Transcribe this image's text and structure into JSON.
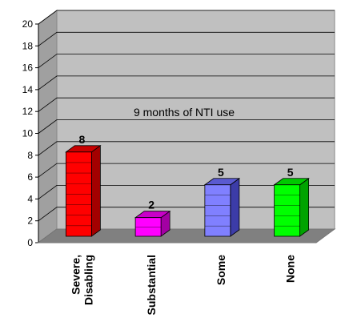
{
  "chart_data": {
    "type": "bar",
    "title": "",
    "annotation": "9 months of NTI use",
    "categories": [
      [
        "Severe,",
        "Disabling"
      ],
      [
        "Substantial"
      ],
      [
        "Some"
      ],
      [
        "None"
      ]
    ],
    "values": [
      8,
      2,
      5,
      5
    ],
    "value_labels": [
      "8",
      "2",
      "5",
      "5"
    ],
    "bar_colors": [
      "#ff0000",
      "#ff00ff",
      "#8080ff",
      "#00ff00"
    ],
    "bar_side_colors": [
      "#a30000",
      "#a300a3",
      "#3c3ca8",
      "#00a300"
    ],
    "bar_top_colors": [
      "#c80000",
      "#c800c8",
      "#5a5ad0",
      "#00c800"
    ],
    "ylim": [
      0,
      20
    ],
    "yticks": [
      "0",
      "2",
      "4",
      "6",
      "8",
      "10",
      "12",
      "14",
      "16",
      "18",
      "20"
    ],
    "grid": true,
    "wall_color": "#c0c0c0",
    "floor_color": "#808080"
  }
}
